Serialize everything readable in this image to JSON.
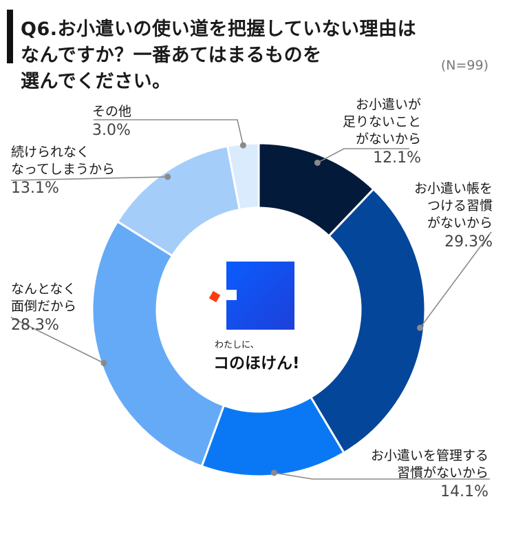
{
  "title_lines": [
    "Q6.お小遣いの使い道を把握していない理由は",
    "なんですか？一番あてはまるものを",
    "選んでください。"
  ],
  "sample_note": "(N=99)",
  "brand": {
    "tagline": "わたしに、",
    "name": "コのほけん!"
  },
  "chart_data": {
    "type": "pie",
    "donut": true,
    "start": "12 o'clock, clockwise",
    "slices": [
      {
        "lines": [
          "お小遣いが",
          "足りないこと",
          "がないから"
        ],
        "pct_label": "12.1%",
        "value": 12.1,
        "color": "#041a3a"
      },
      {
        "lines": [
          "お小遣い帳を",
          "つける習慣",
          "がないから"
        ],
        "pct_label": "29.3%",
        "value": 29.3,
        "color": "#04469a"
      },
      {
        "lines": [
          "お小遣いを管理する",
          "習慣がないから"
        ],
        "pct_label": "14.1%",
        "value": 14.1,
        "color": "#0a78f5"
      },
      {
        "lines": [
          "なんとなく",
          "面倒だから"
        ],
        "pct_label": "28.3%",
        "value": 28.3,
        "color": "#65aaf6"
      },
      {
        "lines": [
          "続けられなく",
          "なってしまうから"
        ],
        "pct_label": "13.1%",
        "value": 13.1,
        "color": "#a4cdfa"
      },
      {
        "lines": [
          "その他"
        ],
        "pct_label": "3.0%",
        "value": 3.0,
        "color": "#d9ebfd"
      }
    ]
  }
}
